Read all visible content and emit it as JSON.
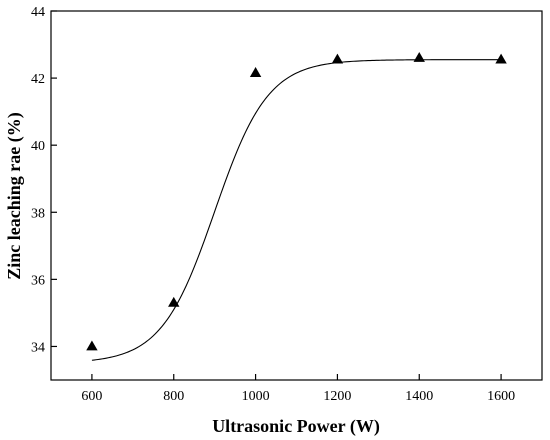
{
  "chart_data": {
    "type": "scatter",
    "xlabel": "Ultrasonic Power (W)",
    "ylabel": "Zinc leaching rae (%)",
    "xlim": [
      500,
      1700
    ],
    "ylim": [
      33,
      44
    ],
    "x_ticks": [
      600,
      800,
      1000,
      1200,
      1400,
      1600
    ],
    "y_ticks": [
      34,
      36,
      38,
      40,
      42,
      44
    ],
    "x_tick_labels": [
      "600",
      "800",
      "1000",
      "1200",
      "1400",
      "1600"
    ],
    "y_tick_labels": [
      "34",
      "36",
      "38",
      "40",
      "42",
      "44"
    ],
    "grid": false,
    "series": [
      {
        "marker": "triangle",
        "color": "#000000",
        "x": [
          600,
          800,
          1000,
          1200,
          1400,
          1600
        ],
        "y": [
          34.0,
          35.3,
          42.15,
          42.55,
          42.6,
          42.55
        ]
      }
    ],
    "fit_curve": {
      "type": "sigmoid",
      "color": "#000000",
      "bottom": 33.5,
      "top": 42.55,
      "x50": 900,
      "slope": 65
    }
  }
}
